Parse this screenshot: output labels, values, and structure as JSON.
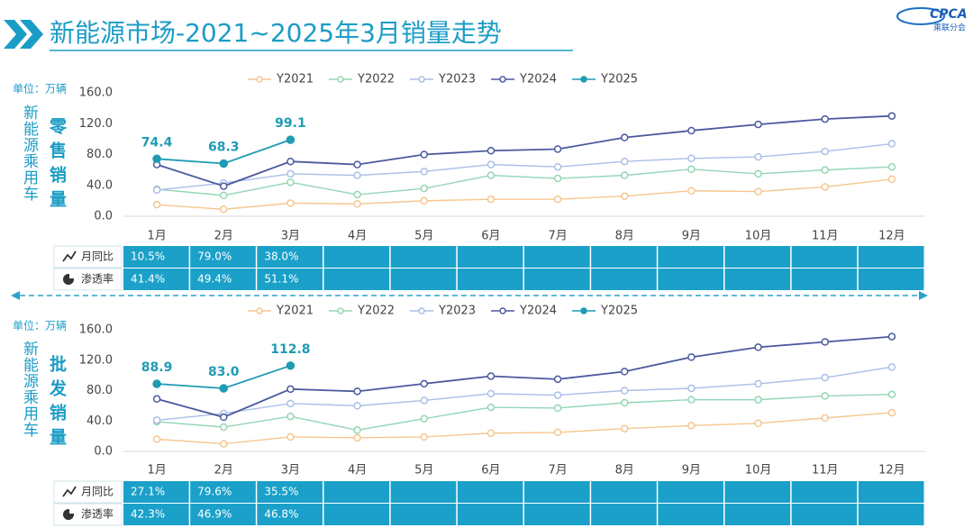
{
  "header": {
    "title": "新能源市场-2021~2025年3月销量走势",
    "logo": "CPCA",
    "logo_sub": "乘联分会"
  },
  "chart_data": [
    {
      "type": "line",
      "unit": "单位：万辆",
      "side_label": "新能源乘用车",
      "title": "零售销量",
      "categories": [
        "1月",
        "2月",
        "3月",
        "4月",
        "5月",
        "6月",
        "7月",
        "8月",
        "9月",
        "10月",
        "11月",
        "12月"
      ],
      "ylim": [
        0,
        160
      ],
      "yticks": [
        {
          "value": 0,
          "label": "0.0"
        },
        {
          "value": 40,
          "label": "40.0"
        },
        {
          "value": 80,
          "label": "80.0"
        },
        {
          "value": 120,
          "label": "120.0"
        },
        {
          "value": 160,
          "label": "160.0"
        }
      ],
      "grid": false,
      "series": [
        {
          "name": "Y2021",
          "color": "#f6c68f",
          "values": [
            15,
            9,
            17,
            16,
            20,
            22,
            22,
            26,
            33,
            32,
            38,
            48
          ]
        },
        {
          "name": "Y2022",
          "color": "#94d6b5",
          "values": [
            35,
            27,
            44,
            28,
            36,
            53,
            49,
            53,
            61,
            55,
            60,
            64
          ]
        },
        {
          "name": "Y2023",
          "color": "#aabfe8",
          "values": [
            34,
            43,
            55,
            53,
            58,
            67,
            64,
            71,
            75,
            77,
            84,
            94
          ]
        },
        {
          "name": "Y2024",
          "color": "#4b5a9e",
          "values": [
            67,
            39,
            71,
            67,
            80,
            85,
            87,
            102,
            111,
            119,
            126,
            130
          ]
        },
        {
          "name": "Y2025",
          "color": "#1f9bb3",
          "values": [
            74.4,
            68.3,
            99.1,
            null,
            null,
            null,
            null,
            null,
            null,
            null,
            null,
            null
          ],
          "value_labels": [
            "74.4",
            "68.3",
            "99.1"
          ]
        }
      ],
      "table": {
        "rows": [
          {
            "name": "月同比",
            "values": [
              "10.5%",
              "79.0%",
              "38.0%"
            ]
          },
          {
            "name": "渗透率",
            "values": [
              "41.4%",
              "49.4%",
              "51.1%"
            ]
          }
        ]
      }
    },
    {
      "type": "line",
      "unit": "单位：万辆",
      "side_label": "新能源乘用车",
      "title": "批发销量",
      "categories": [
        "1月",
        "2月",
        "3月",
        "4月",
        "5月",
        "6月",
        "7月",
        "8月",
        "9月",
        "10月",
        "11月",
        "12月"
      ],
      "ylim": [
        0,
        160
      ],
      "yticks": [
        {
          "value": 0,
          "label": "0.0"
        },
        {
          "value": 40,
          "label": "40.0"
        },
        {
          "value": 80,
          "label": "80.0"
        },
        {
          "value": 120,
          "label": "120.0"
        },
        {
          "value": 160,
          "label": "160.0"
        }
      ],
      "grid": false,
      "series": [
        {
          "name": "Y2021",
          "color": "#f6c68f",
          "values": [
            16,
            10,
            19,
            18,
            19,
            24,
            25,
            30,
            34,
            37,
            44,
            51
          ]
        },
        {
          "name": "Y2022",
          "color": "#94d6b5",
          "values": [
            39,
            32,
            46,
            28,
            43,
            58,
            57,
            64,
            68,
            68,
            73,
            75
          ]
        },
        {
          "name": "Y2023",
          "color": "#aabfe8",
          "values": [
            41,
            50,
            63,
            60,
            67,
            76,
            74,
            80,
            83,
            89,
            97,
            111
          ]
        },
        {
          "name": "Y2024",
          "color": "#4b5a9e",
          "values": [
            69,
            45,
            82,
            79,
            89,
            99,
            95,
            105,
            124,
            137,
            144,
            151
          ]
        },
        {
          "name": "Y2025",
          "color": "#1f9bb3",
          "values": [
            88.9,
            83.0,
            112.8,
            null,
            null,
            null,
            null,
            null,
            null,
            null,
            null,
            null
          ],
          "value_labels": [
            "88.9",
            "83.0",
            "112.8"
          ]
        }
      ],
      "table": {
        "rows": [
          {
            "name": "月同比",
            "values": [
              "27.1%",
              "79.6%",
              "35.5%"
            ]
          },
          {
            "name": "渗透率",
            "values": [
              "42.3%",
              "46.9%",
              "46.8%"
            ]
          }
        ]
      }
    }
  ]
}
